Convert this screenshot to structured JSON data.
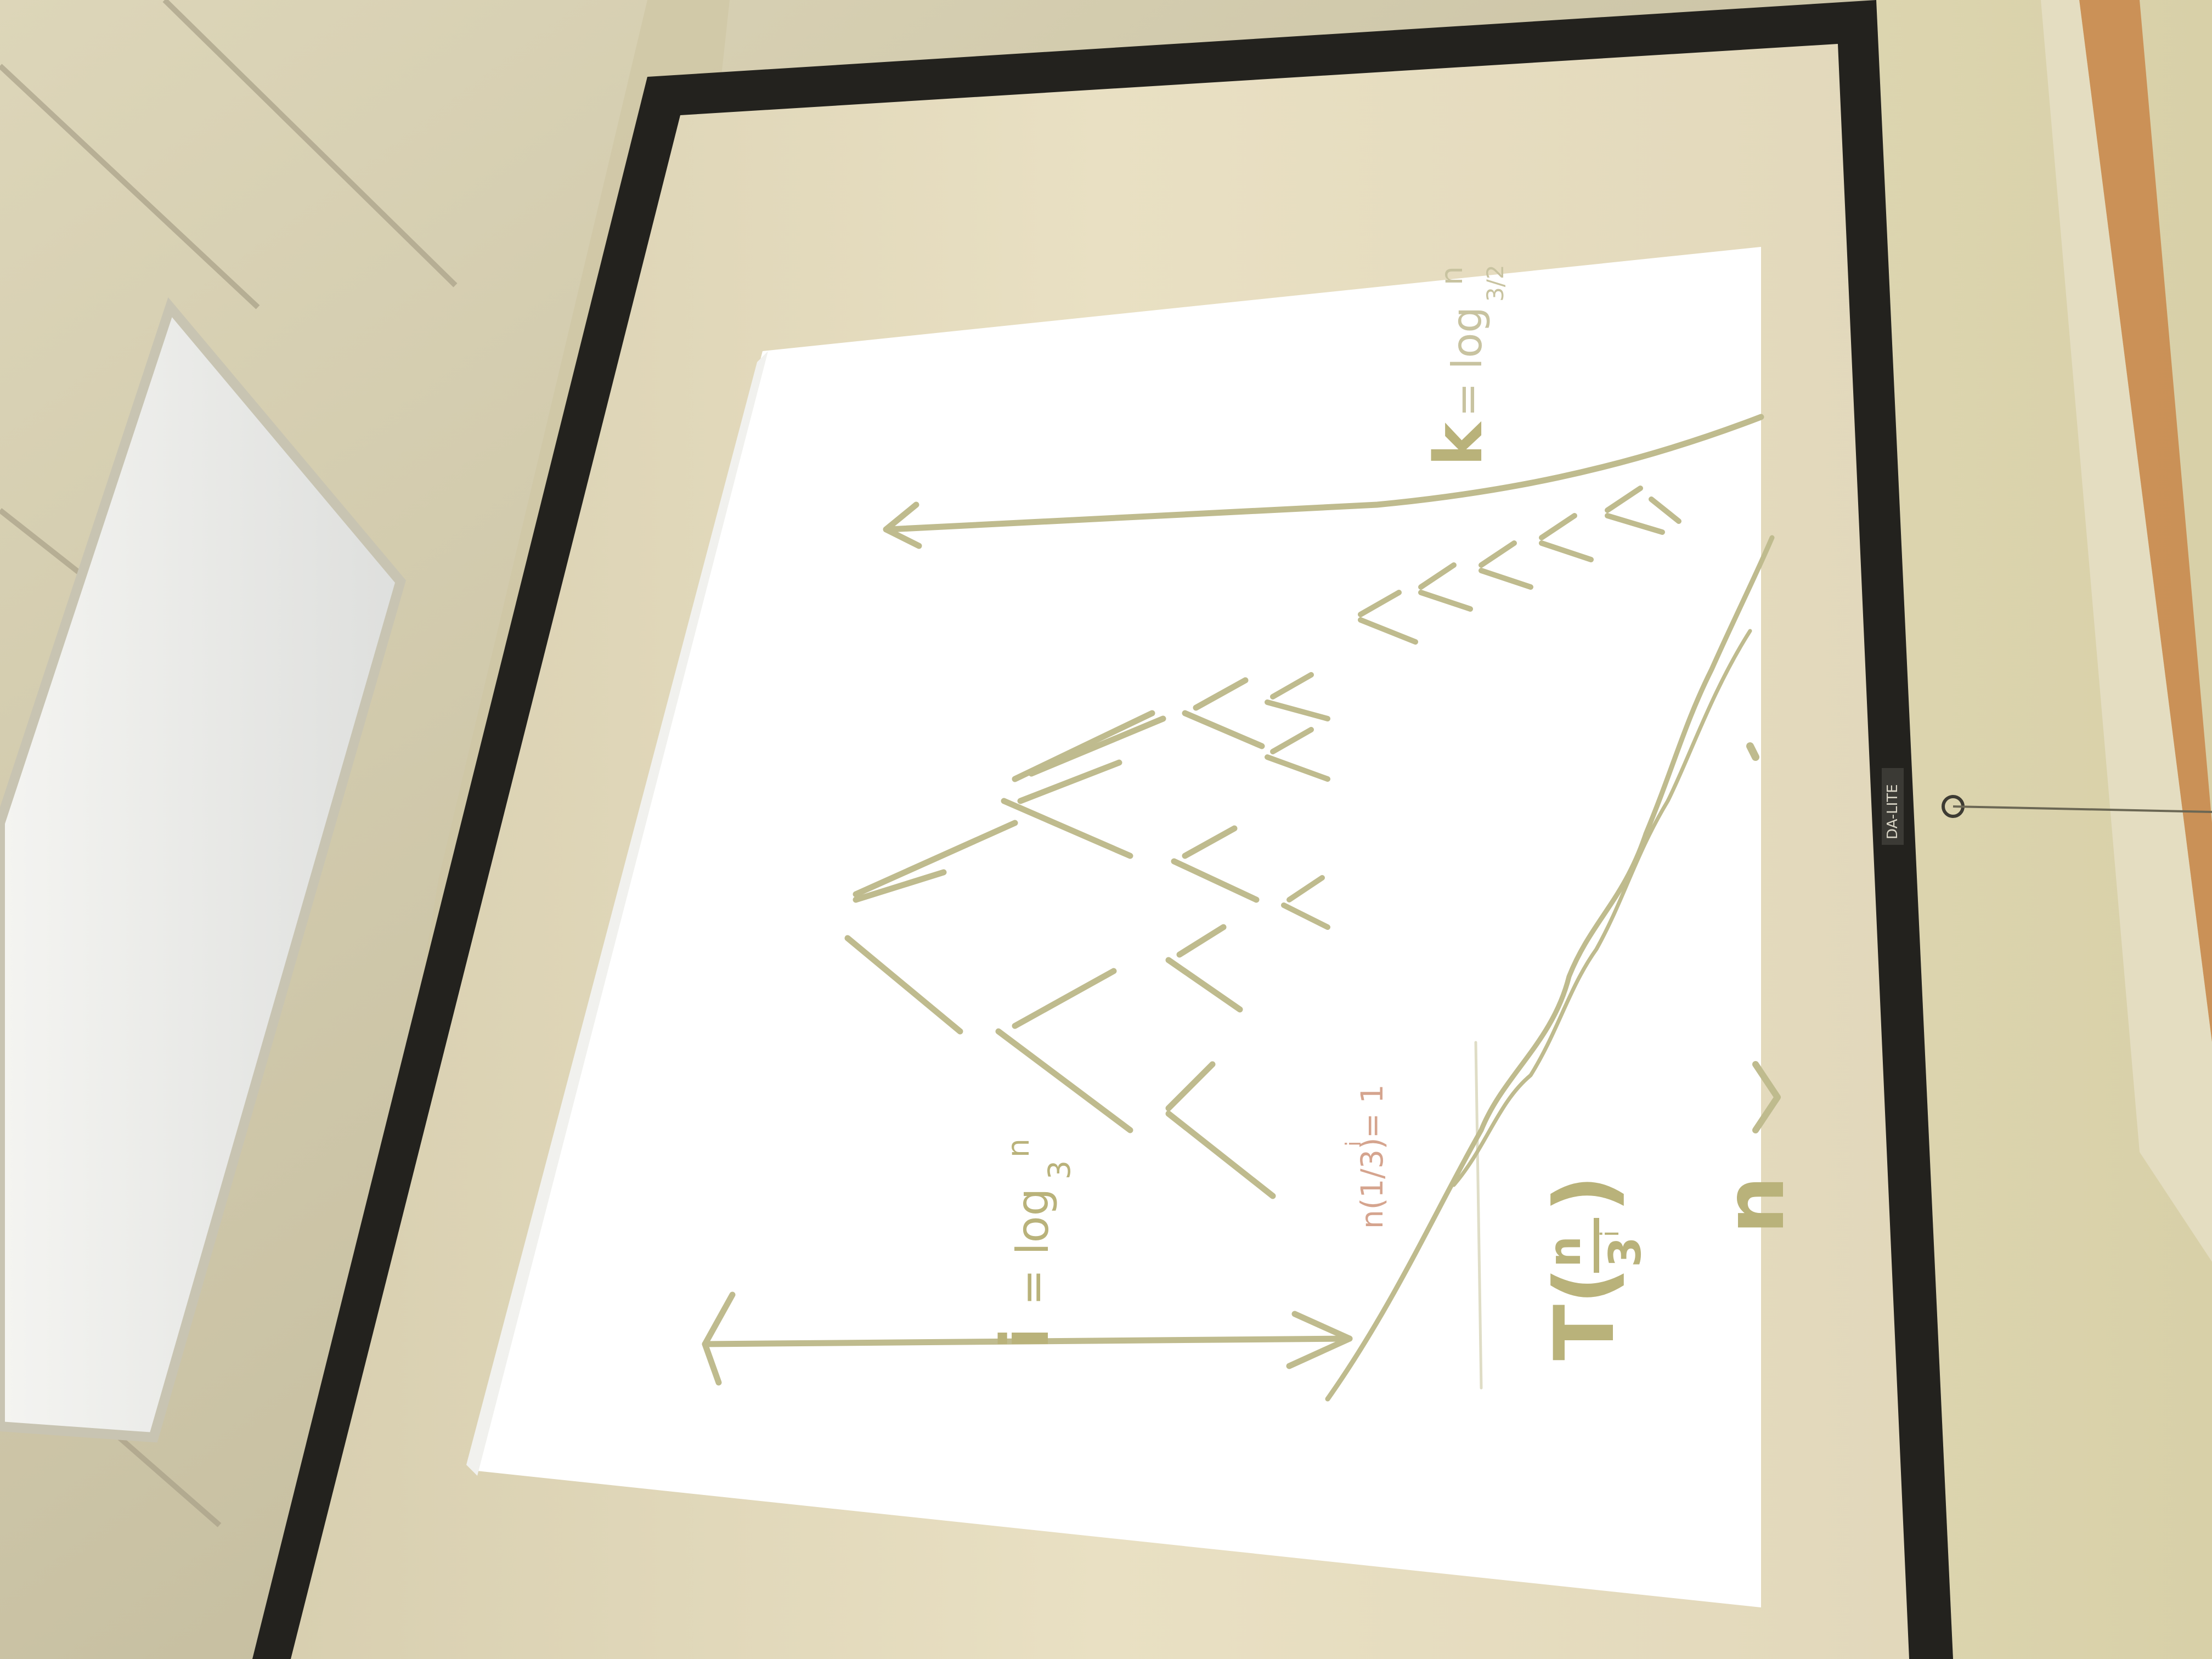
{
  "scene": {
    "colors": {
      "ceiling": "#d9d2b4",
      "wall": "#e3dbb5",
      "screen_frame": "#23221e",
      "screen_surface": "#e6dcc0",
      "projected_page": "#ffffff",
      "ink": "#bfbb8e",
      "ink_annotation": "#d5a48e",
      "door_wood": "#c98a4e"
    },
    "whiteboard_notes": {
      "i_label": "i",
      "i_equation": "= log",
      "i_base": "3",
      "i_arg": "n",
      "k_label": "k",
      "k_equation": "= log",
      "k_base": "3/2",
      "k_arg": "n",
      "condition_text": "n(1/3)",
      "condition_exp": "i",
      "condition_rhs": " = 1",
      "recurrence_T": "T(",
      "recurrence_num": "n",
      "recurrence_den": "3",
      "recurrence_den_exp": "i",
      "recurrence_close": ")",
      "partial_n": "n"
    },
    "screen_label": "DA-LITE"
  }
}
